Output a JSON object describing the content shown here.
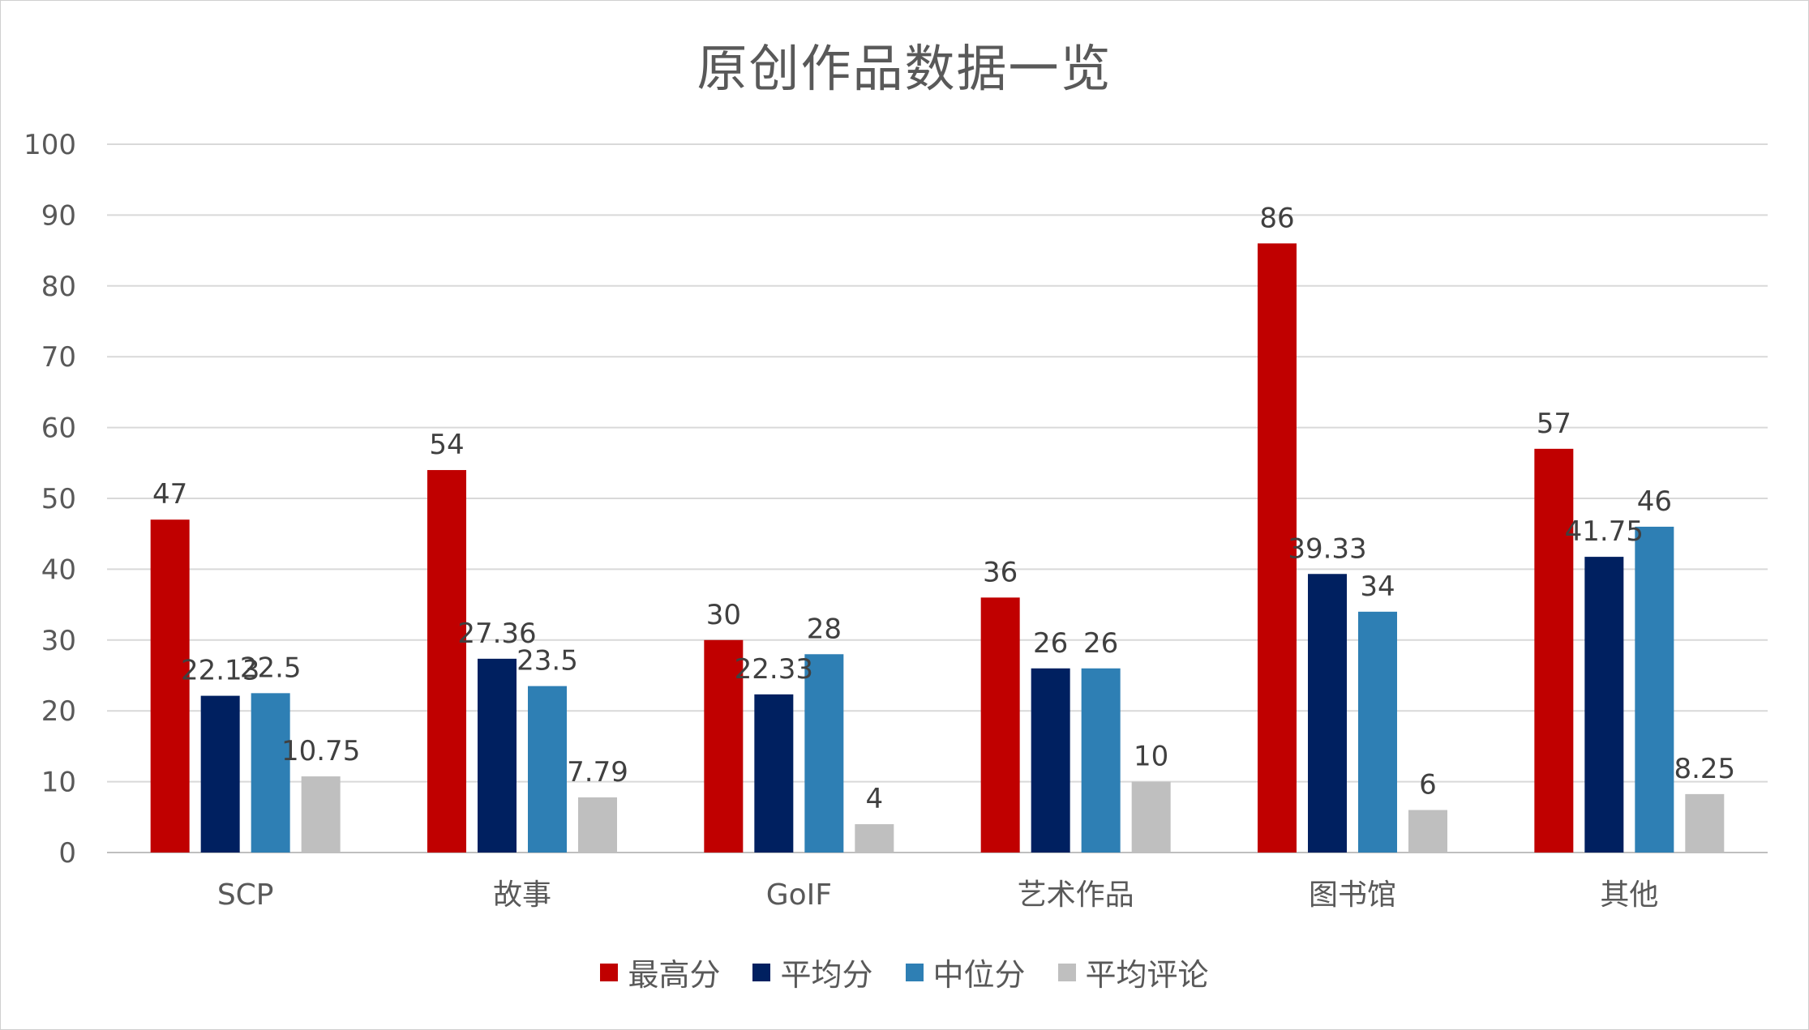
{
  "chart_data": {
    "type": "bar",
    "title": "原创作品数据一览",
    "xlabel": "",
    "ylabel": "",
    "ylim": [
      0,
      100
    ],
    "yticks": [
      0,
      10,
      20,
      30,
      40,
      50,
      60,
      70,
      80,
      90,
      100
    ],
    "grid": true,
    "legend_position": "bottom",
    "categories": [
      "SCP",
      "故事",
      "GoIF",
      "艺术作品",
      "图书馆",
      "其他"
    ],
    "series": [
      {
        "name": "最高分",
        "color": "#C00000",
        "values": [
          47,
          54,
          30,
          36,
          86,
          57
        ]
      },
      {
        "name": "平均分",
        "color": "#002060",
        "values": [
          22.13,
          27.36,
          22.33,
          26,
          39.33,
          41.75
        ]
      },
      {
        "name": "中位分",
        "color": "#2E7FB4",
        "values": [
          22.5,
          23.5,
          28,
          26,
          34,
          46
        ]
      },
      {
        "name": "平均评论",
        "color": "#BFBFBF",
        "values": [
          10.75,
          7.79,
          4,
          10,
          6,
          8.25
        ]
      }
    ]
  }
}
